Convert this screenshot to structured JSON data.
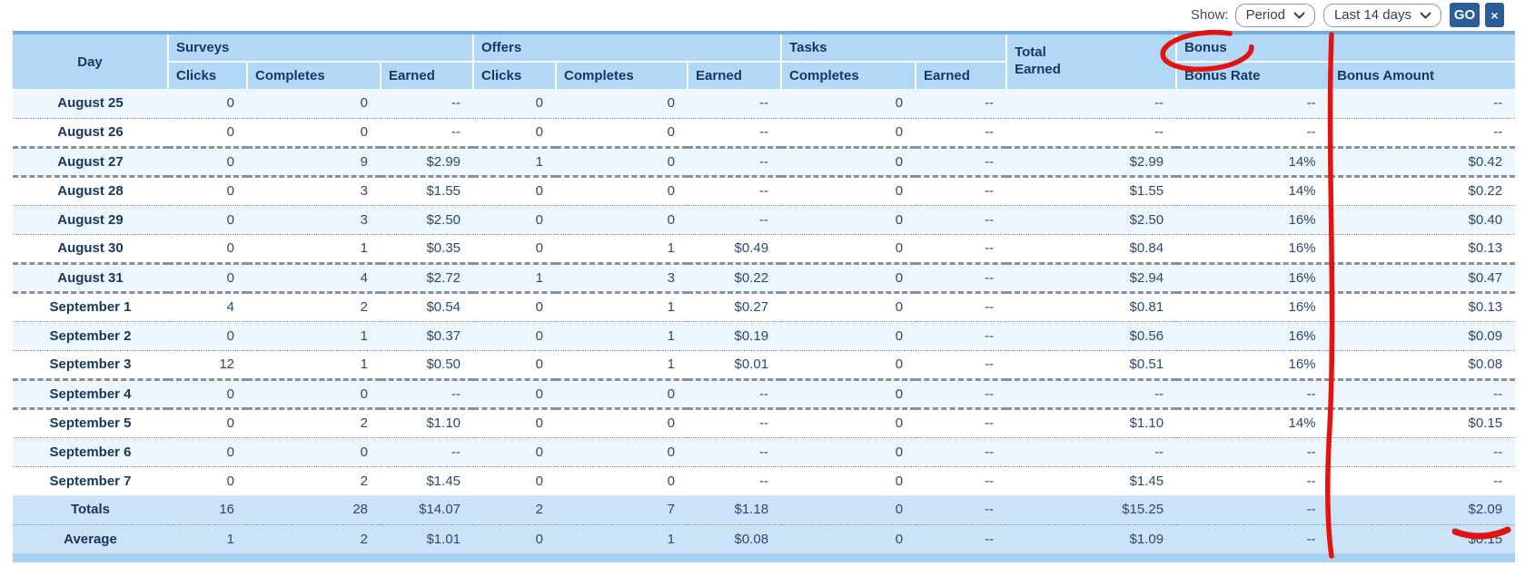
{
  "controls": {
    "show_label": "Show:",
    "period_select": {
      "value": "Period"
    },
    "range_select": {
      "value": "Last 14 days"
    },
    "go_button": "GO",
    "close_button": "×"
  },
  "table": {
    "header": {
      "day": "Day",
      "surveys": "Surveys",
      "offers": "Offers",
      "tasks": "Tasks",
      "total_earned": "Total Earned",
      "bonus": "Bonus",
      "sub": [
        "Clicks",
        "Completes",
        "Earned",
        "Clicks",
        "Completes",
        "Earned",
        "Completes",
        "Earned",
        "Bonus Rate",
        "Bonus Amount"
      ]
    },
    "rows": [
      {
        "type": "day",
        "label": "August 25",
        "values": [
          "0",
          "0",
          "--",
          "0",
          "0",
          "--",
          "0",
          "--",
          "--",
          "--",
          "--"
        ]
      },
      {
        "type": "day",
        "label": "August 26",
        "values": [
          "0",
          "0",
          "--",
          "0",
          "0",
          "--",
          "0",
          "--",
          "--",
          "--",
          "--"
        ]
      },
      {
        "type": "day",
        "label": "August 27",
        "values": [
          "0",
          "9",
          "$2.99",
          "1",
          "0",
          "--",
          "0",
          "--",
          "$2.99",
          "14%",
          "$0.42"
        ]
      },
      {
        "type": "day",
        "label": "August 28",
        "values": [
          "0",
          "3",
          "$1.55",
          "0",
          "0",
          "--",
          "0",
          "--",
          "$1.55",
          "14%",
          "$0.22"
        ]
      },
      {
        "type": "day",
        "label": "August 29",
        "values": [
          "0",
          "3",
          "$2.50",
          "0",
          "0",
          "--",
          "0",
          "--",
          "$2.50",
          "16%",
          "$0.40"
        ]
      },
      {
        "type": "day",
        "label": "August 30",
        "values": [
          "0",
          "1",
          "$0.35",
          "0",
          "1",
          "$0.49",
          "0",
          "--",
          "$0.84",
          "16%",
          "$0.13"
        ]
      },
      {
        "type": "day",
        "label": "August 31",
        "values": [
          "0",
          "4",
          "$2.72",
          "1",
          "3",
          "$0.22",
          "0",
          "--",
          "$2.94",
          "16%",
          "$0.47"
        ]
      },
      {
        "type": "day",
        "label": "September 1",
        "values": [
          "4",
          "2",
          "$0.54",
          "0",
          "1",
          "$0.27",
          "0",
          "--",
          "$0.81",
          "16%",
          "$0.13"
        ]
      },
      {
        "type": "day",
        "label": "September 2",
        "values": [
          "0",
          "1",
          "$0.37",
          "0",
          "1",
          "$0.19",
          "0",
          "--",
          "$0.56",
          "16%",
          "$0.09"
        ]
      },
      {
        "type": "day",
        "label": "September 3",
        "values": [
          "12",
          "1",
          "$0.50",
          "0",
          "1",
          "$0.01",
          "0",
          "--",
          "$0.51",
          "16%",
          "$0.08"
        ]
      },
      {
        "type": "day",
        "label": "September 4",
        "values": [
          "0",
          "0",
          "--",
          "0",
          "0",
          "--",
          "0",
          "--",
          "--",
          "--",
          "--"
        ]
      },
      {
        "type": "day",
        "label": "September 5",
        "values": [
          "0",
          "2",
          "$1.10",
          "0",
          "0",
          "--",
          "0",
          "--",
          "$1.10",
          "14%",
          "$0.15"
        ]
      },
      {
        "type": "day",
        "label": "September 6",
        "values": [
          "0",
          "0",
          "--",
          "0",
          "0",
          "--",
          "0",
          "--",
          "--",
          "--",
          "--"
        ]
      },
      {
        "type": "day",
        "label": "September 7",
        "values": [
          "0",
          "2",
          "$1.45",
          "0",
          "0",
          "--",
          "0",
          "--",
          "$1.45",
          "--",
          "--"
        ]
      },
      {
        "type": "totals",
        "label": "Totals",
        "values": [
          "16",
          "28",
          "$14.07",
          "2",
          "7",
          "$1.18",
          "0",
          "--",
          "$15.25",
          "--",
          "$2.09"
        ]
      },
      {
        "type": "average",
        "label": "Average",
        "values": [
          "1",
          "2",
          "$1.01",
          "0",
          "1",
          "$0.08",
          "0",
          "--",
          "$1.09",
          "--",
          "$0.15"
        ]
      }
    ]
  },
  "annotations": {
    "color": "#e3140f",
    "circle_target": "Bonus",
    "line_position": "between Bonus Rate and Bonus Amount columns",
    "underline_target": "$2.09"
  }
}
